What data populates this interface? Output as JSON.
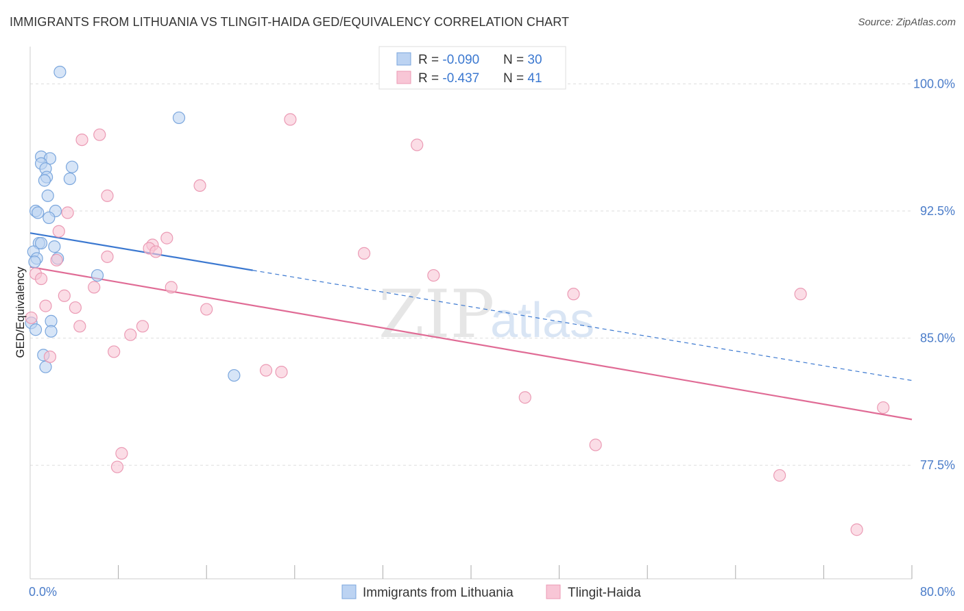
{
  "title": "IMMIGRANTS FROM LITHUANIA VS TLINGIT-HAIDA GED/EQUIVALENCY CORRELATION CHART",
  "source": "Source: ZipAtlas.com",
  "watermark": {
    "zip": "ZIP",
    "atlas": "atlas"
  },
  "colors": {
    "blue_fill": "#bcd3f2",
    "blue_stroke": "#7aa6dd",
    "blue_line": "#3b78d0",
    "pink_fill": "#f8c6d6",
    "pink_stroke": "#eb9ab4",
    "pink_line": "#e06b95",
    "tick": "#4a7cc9",
    "grid": "#dddddd"
  },
  "legend_stats": [
    {
      "r_label": "R = ",
      "r_value": "-0.090",
      "n_label": "N = ",
      "n_value": "30"
    },
    {
      "r_label": "R = ",
      "r_value": " -0.437",
      "n_label": "N = ",
      "n_value": " 41"
    }
  ],
  "chart_data": {
    "type": "scatter",
    "ylabel": "GED/Equivalency",
    "xlim": [
      0,
      80
    ],
    "ylim": [
      70.8,
      102.2
    ],
    "x_tick_labels": [
      {
        "value": 0,
        "label": "0.0%"
      },
      {
        "value": 80,
        "label": "80.0%"
      }
    ],
    "y_ticks": [
      {
        "value": 100,
        "label": "100.0%"
      },
      {
        "value": 92.5,
        "label": "92.5%"
      },
      {
        "value": 85,
        "label": "85.0%"
      },
      {
        "value": 77.5,
        "label": "77.5%"
      }
    ],
    "x_minor_ticks": [
      8,
      16,
      24,
      32,
      40,
      48,
      56,
      64,
      72,
      80
    ],
    "series": [
      {
        "name": "Immigrants from Lithuania",
        "color": "#7aa6dd",
        "r": -0.09,
        "n": 30,
        "trend": {
          "x0": 0,
          "y0": 91.2,
          "x1": 20.2,
          "y1": 89.0,
          "dash_x1": 80,
          "dash_y1": 82.5
        },
        "points": [
          {
            "x": 2.7,
            "y": 100.7
          },
          {
            "x": 13.5,
            "y": 98.0
          },
          {
            "x": 1.0,
            "y": 95.7
          },
          {
            "x": 1.8,
            "y": 95.6
          },
          {
            "x": 1.0,
            "y": 95.3
          },
          {
            "x": 3.8,
            "y": 95.1
          },
          {
            "x": 1.4,
            "y": 95.0
          },
          {
            "x": 1.5,
            "y": 94.5
          },
          {
            "x": 3.6,
            "y": 94.4
          },
          {
            "x": 1.3,
            "y": 94.3
          },
          {
            "x": 1.6,
            "y": 93.4
          },
          {
            "x": 0.5,
            "y": 92.5
          },
          {
            "x": 0.7,
            "y": 92.4
          },
          {
            "x": 2.3,
            "y": 92.5
          },
          {
            "x": 1.7,
            "y": 92.1
          },
          {
            "x": 0.8,
            "y": 90.6
          },
          {
            "x": 1.0,
            "y": 90.6
          },
          {
            "x": 2.2,
            "y": 90.4
          },
          {
            "x": 0.3,
            "y": 90.1
          },
          {
            "x": 0.6,
            "y": 89.7
          },
          {
            "x": 2.5,
            "y": 89.7
          },
          {
            "x": 0.4,
            "y": 89.5
          },
          {
            "x": 6.1,
            "y": 88.7
          },
          {
            "x": 0.1,
            "y": 85.9
          },
          {
            "x": 1.9,
            "y": 86.0
          },
          {
            "x": 1.9,
            "y": 85.4
          },
          {
            "x": 1.2,
            "y": 84.0
          },
          {
            "x": 1.4,
            "y": 83.3
          },
          {
            "x": 18.5,
            "y": 82.8
          },
          {
            "x": 0.5,
            "y": 85.5
          }
        ]
      },
      {
        "name": "Tlingit-Haida",
        "color": "#eb9ab4",
        "r": -0.437,
        "n": 41,
        "trend": {
          "x0": 0,
          "y0": 89.2,
          "x1": 80,
          "y1": 80.2
        },
        "points": [
          {
            "x": 23.6,
            "y": 97.9
          },
          {
            "x": 6.3,
            "y": 97.0
          },
          {
            "x": 4.7,
            "y": 96.7
          },
          {
            "x": 35.1,
            "y": 96.4
          },
          {
            "x": 15.4,
            "y": 94.0
          },
          {
            "x": 7.0,
            "y": 93.4
          },
          {
            "x": 3.4,
            "y": 92.4
          },
          {
            "x": 2.6,
            "y": 91.3
          },
          {
            "x": 12.4,
            "y": 90.9
          },
          {
            "x": 11.1,
            "y": 90.5
          },
          {
            "x": 10.8,
            "y": 90.3
          },
          {
            "x": 11.4,
            "y": 90.1
          },
          {
            "x": 30.3,
            "y": 90.0
          },
          {
            "x": 7.0,
            "y": 89.8
          },
          {
            "x": 2.4,
            "y": 89.6
          },
          {
            "x": 36.6,
            "y": 88.7
          },
          {
            "x": 0.5,
            "y": 88.8
          },
          {
            "x": 1.0,
            "y": 88.5
          },
          {
            "x": 5.8,
            "y": 88.0
          },
          {
            "x": 12.8,
            "y": 88.0
          },
          {
            "x": 3.1,
            "y": 87.5
          },
          {
            "x": 49.3,
            "y": 87.6
          },
          {
            "x": 69.9,
            "y": 87.6
          },
          {
            "x": 1.4,
            "y": 86.9
          },
          {
            "x": 4.1,
            "y": 86.8
          },
          {
            "x": 16.0,
            "y": 86.7
          },
          {
            "x": 0.1,
            "y": 86.2
          },
          {
            "x": 4.5,
            "y": 85.7
          },
          {
            "x": 10.2,
            "y": 85.7
          },
          {
            "x": 9.1,
            "y": 85.2
          },
          {
            "x": 7.6,
            "y": 84.2
          },
          {
            "x": 1.8,
            "y": 83.9
          },
          {
            "x": 21.4,
            "y": 83.1
          },
          {
            "x": 22.8,
            "y": 83.0
          },
          {
            "x": 44.9,
            "y": 81.5
          },
          {
            "x": 77.4,
            "y": 80.9
          },
          {
            "x": 51.3,
            "y": 78.7
          },
          {
            "x": 8.3,
            "y": 78.2
          },
          {
            "x": 7.9,
            "y": 77.4
          },
          {
            "x": 68.0,
            "y": 76.9
          },
          {
            "x": 75.0,
            "y": 73.7
          }
        ]
      }
    ]
  }
}
